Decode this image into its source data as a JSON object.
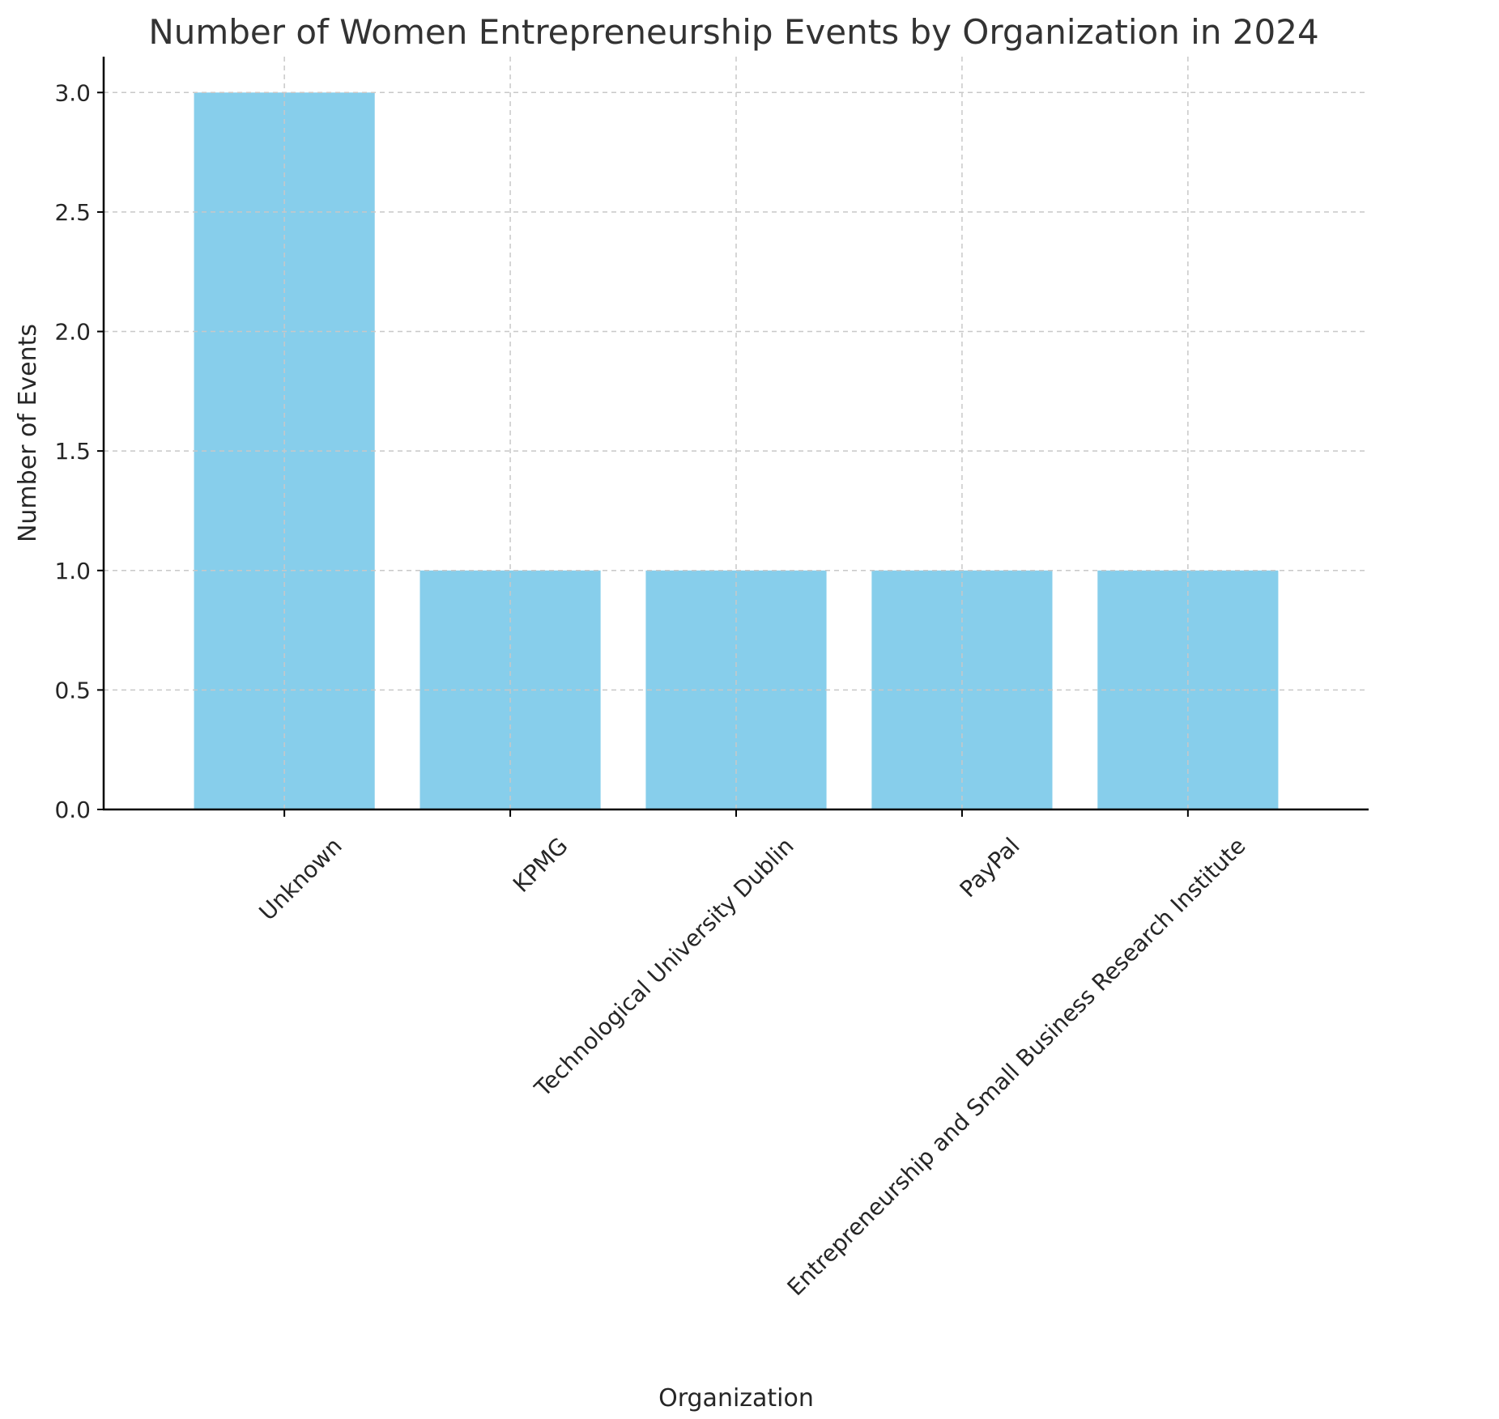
{
  "chart_data": {
    "type": "bar",
    "title": "Number of Women Entrepreneurship Events by Organization in 2024",
    "xlabel": "Organization",
    "ylabel": "Number of Events",
    "categories": [
      "Unknown",
      "KPMG",
      "Technological University Dublin",
      "PayPal",
      "Entrepreneurship and Small Business Research Institute"
    ],
    "values": [
      3,
      1,
      1,
      1,
      1
    ],
    "ylim": [
      0,
      3.15
    ],
    "yticks": [
      0.0,
      0.5,
      1.0,
      1.5,
      2.0,
      2.5,
      3.0
    ],
    "ytick_labels": [
      "0.0",
      "0.5",
      "1.0",
      "1.5",
      "2.0",
      "2.5",
      "3.0"
    ],
    "bar_color": "#87ceeb",
    "grid": true,
    "legend": "none"
  }
}
